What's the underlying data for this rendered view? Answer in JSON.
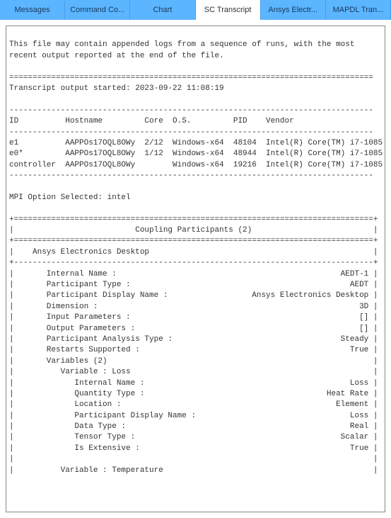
{
  "tabs": [
    {
      "label": "Messages",
      "active": false
    },
    {
      "label": "Command Co...",
      "active": false
    },
    {
      "label": "Chart",
      "active": false
    },
    {
      "label": "SC Transcript",
      "active": true
    },
    {
      "label": "Ansys Electr...",
      "active": false
    },
    {
      "label": "MAPDL Tran...",
      "active": false
    }
  ],
  "transcript": {
    "lines": [
      "",
      "This file may contain appended logs from a sequence of runs, with the most",
      "recent output reported at the end of the file.",
      "",
      "==============================================================================",
      "Transcript output started: 2023-09-22 11:08:19",
      "",
      "------------------------------------------------------------------------------",
      "ID          Hostname         Core  O.S.         PID    Vendor                ",
      "------------------------------------------------------------------------------",
      "e1          AAPPOs17OQL8OWy  2/12  Windows-x64  48104  Intel(R) Core(TM) i7-1085",
      "e0*         AAPPOs17OQL8OWy  1/12  Windows-x64  48944  Intel(R) Core(TM) i7-1085",
      "controller  AAPPOs17OQL8OWy        Windows-x64  19216  Intel(R) Core(TM) i7-1085",
      "------------------------------------------------------------------------------",
      "",
      "MPI Option Selected: intel",
      "",
      "+=============================================================================+",
      "|                          Coupling Participants (2)                          |",
      "+=============================================================================+",
      "|    Ansys Electronics Desktop                                                |",
      "+-----------------------------------------------------------------------------+",
      "|       Internal Name :                                                AEDT-1 |",
      "|       Participant Type :                                               AEDT |",
      "|       Participant Display Name :                  Ansys Electronics Desktop |",
      "|       Dimension :                                                        3D |",
      "|       Input Parameters :                                                 [] |",
      "|       Output Parameters :                                                [] |",
      "|       Participant Analysis Type :                                    Steady |",
      "|       Restarts Supported :                                             True |",
      "|       Variables (2)                                                         |",
      "|          Variable : Loss                                                    |",
      "|             Internal Name :                                            Loss |",
      "|             Quantity Type :                                       Heat Rate |",
      "|             Location :                                              Element |",
      "|             Participant Display Name :                                 Loss |",
      "|             Data Type :                                                Real |",
      "|             Tensor Type :                                            Scalar |",
      "|             Is Extensive :                                             True |",
      "|                                                                             |",
      "|          Variable : Temperature                                             |"
    ]
  },
  "colors": {
    "tab_bg": "#5bb5ff",
    "tab_active_bg": "#ffffff",
    "tab_divider": "#4a9ee8",
    "tab_text": "#1a3a5a",
    "border": "#888888",
    "text": "#333333"
  }
}
